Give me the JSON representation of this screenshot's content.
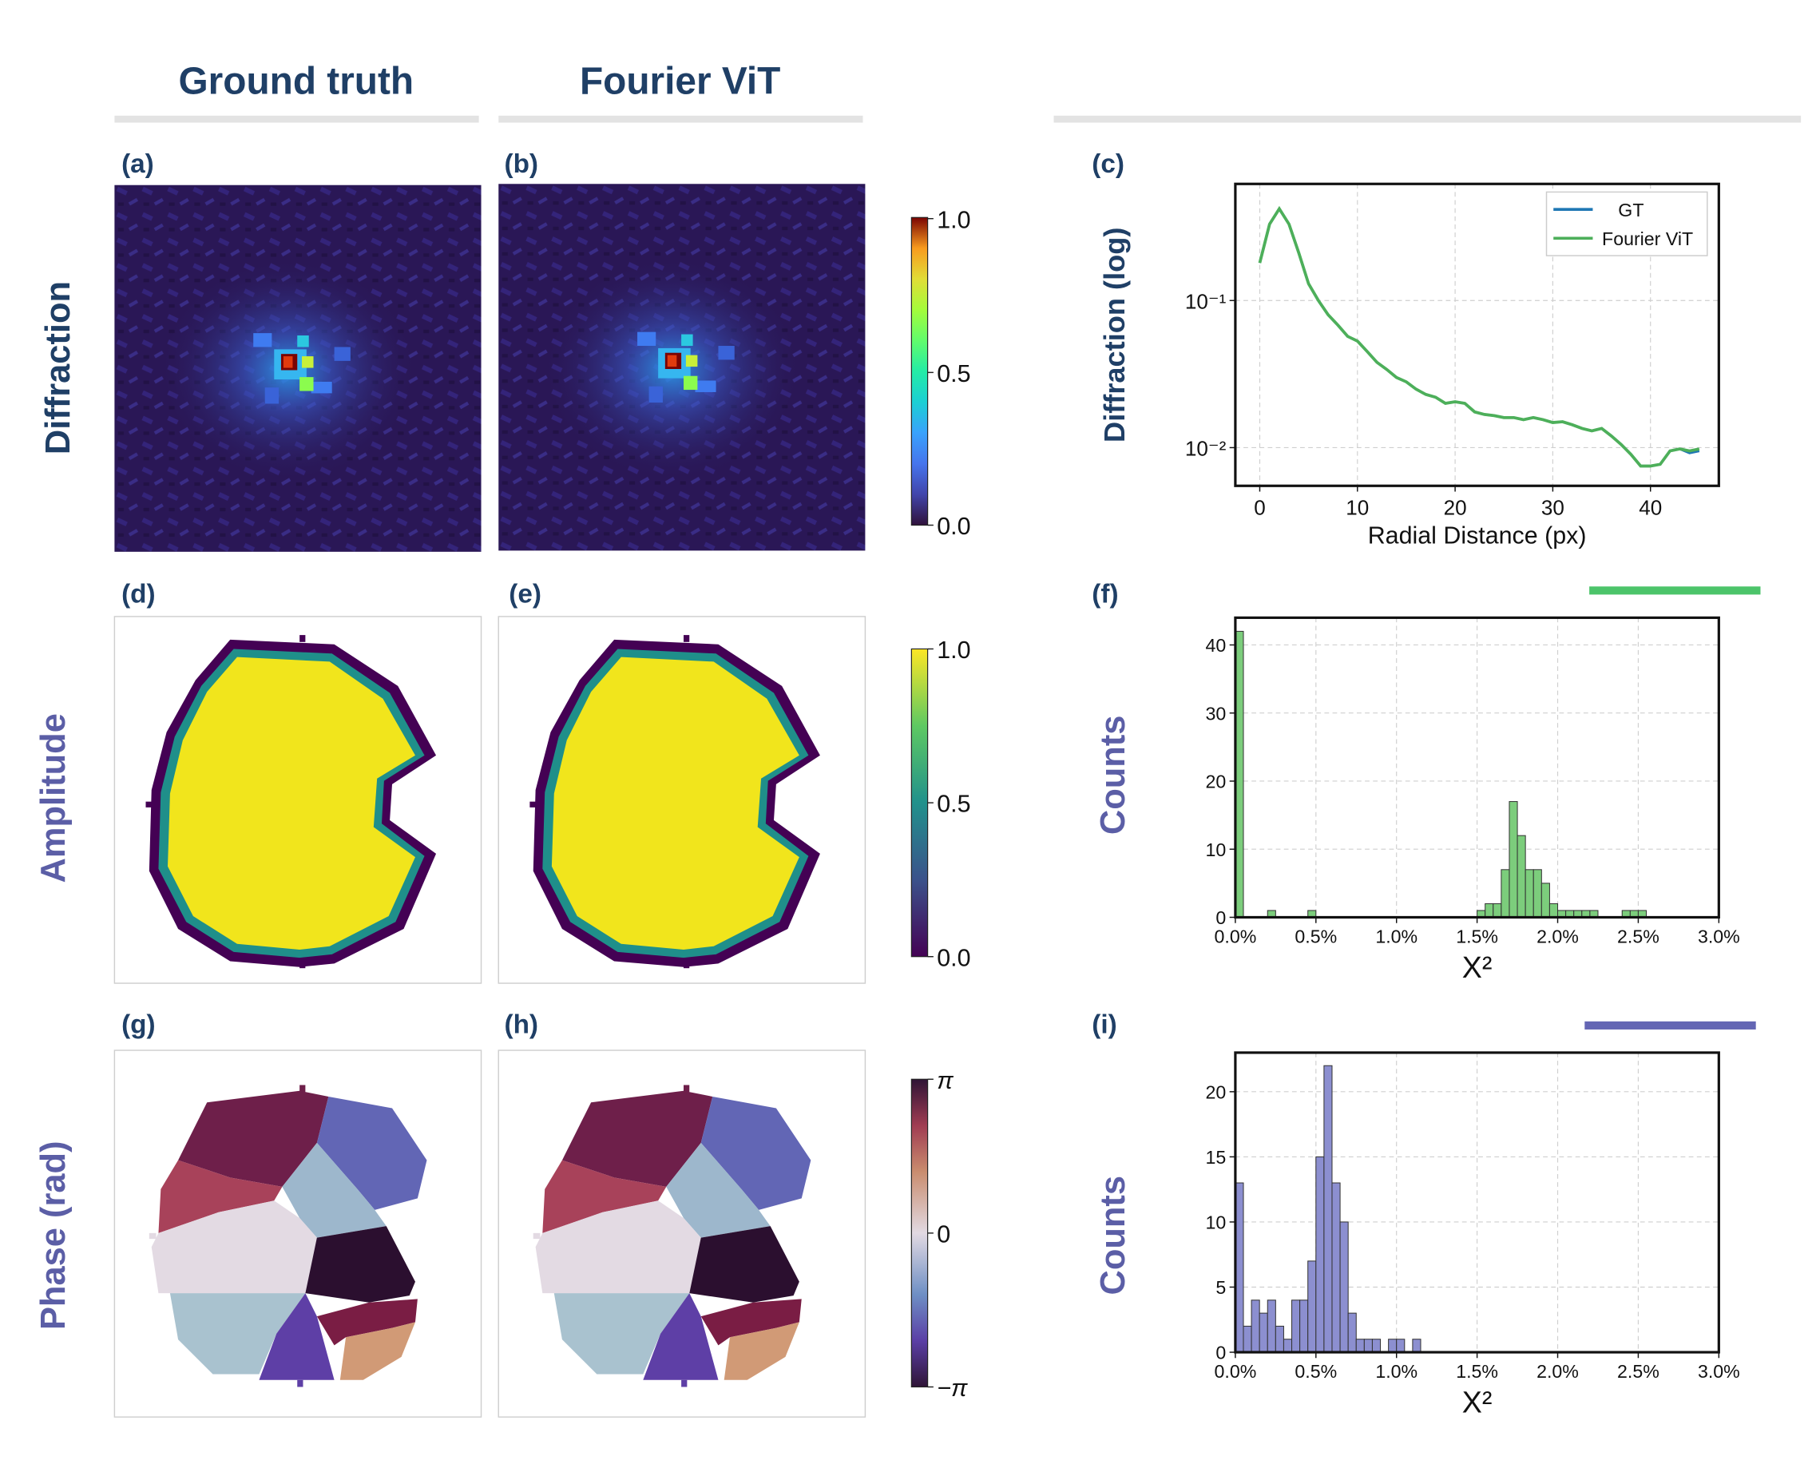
{
  "columns": {
    "ground_truth": "Ground truth",
    "fourier_vit": "Fourier ViT"
  },
  "rows": {
    "diffraction": "Diffraction",
    "amplitude": "Amplitude",
    "phase": "Phase (rad)"
  },
  "panel_labels": [
    "(a)",
    "(b)",
    "(c)",
    "(d)",
    "(e)",
    "(f)",
    "(g)",
    "(h)",
    "(i)"
  ],
  "colorbars": {
    "diffraction": {
      "colormap": "turbo",
      "ticks": [
        "1.0",
        "0.5",
        "0.0"
      ]
    },
    "amplitude": {
      "colormap": "viridis",
      "ticks": [
        "1.0",
        "0.5",
        "0.0"
      ]
    },
    "phase": {
      "colormap": "twilight",
      "ticks": [
        "π",
        "0",
        "−π"
      ]
    }
  },
  "colors": {
    "heading": "#1f3f66",
    "row_amp_phase": "#5b5ea6",
    "gt_line": "#1f77b4",
    "vit_line": "#4daf5a",
    "hist_f": "#7ccd7c",
    "hist_i": "#8c8fd0",
    "bar_f": "#4cc46a",
    "bar_i": "#6466b4"
  },
  "chart_data": [
    {
      "panel": "c",
      "type": "line",
      "xlabel": "Radial Distance (px)",
      "ylabel": "Diffraction (log)",
      "yscale": "log",
      "xlim": [
        -2.5,
        47
      ],
      "ylim": [
        0.0055,
        0.62
      ],
      "x_ticks": [
        "0",
        "10",
        "20",
        "30",
        "40"
      ],
      "y_ticks": [
        "10⁻¹",
        "10⁻²"
      ],
      "grid": true,
      "legend_position": "top-right",
      "series": [
        {
          "name": "GT",
          "x": [
            0,
            1,
            2,
            3,
            4,
            5,
            6,
            7,
            8,
            9,
            10,
            11,
            12,
            13,
            14,
            15,
            16,
            17,
            18,
            19,
            20,
            21,
            22,
            23,
            24,
            25,
            26,
            27,
            28,
            29,
            30,
            31,
            32,
            33,
            34,
            35,
            36,
            37,
            38,
            39,
            40,
            41,
            42,
            43,
            44,
            45
          ],
          "y": [
            0.18,
            0.33,
            0.42,
            0.33,
            0.21,
            0.13,
            0.1,
            0.08,
            0.068,
            0.057,
            0.053,
            0.045,
            0.038,
            0.034,
            0.03,
            0.028,
            0.025,
            0.023,
            0.022,
            0.02,
            0.0205,
            0.02,
            0.0175,
            0.0168,
            0.0165,
            0.016,
            0.016,
            0.0155,
            0.016,
            0.0155,
            0.0148,
            0.015,
            0.0143,
            0.0135,
            0.013,
            0.0135,
            0.012,
            0.0105,
            0.009,
            0.0075,
            0.0075,
            0.0077,
            0.0095,
            0.0098,
            0.0092,
            0.0095
          ]
        },
        {
          "name": "Fourier ViT",
          "x": [
            0,
            1,
            2,
            3,
            4,
            5,
            6,
            7,
            8,
            9,
            10,
            11,
            12,
            13,
            14,
            15,
            16,
            17,
            18,
            19,
            20,
            21,
            22,
            23,
            24,
            25,
            26,
            27,
            28,
            29,
            30,
            31,
            32,
            33,
            34,
            35,
            36,
            37,
            38,
            39,
            40,
            41,
            42,
            43,
            44,
            45
          ],
          "y": [
            0.18,
            0.33,
            0.42,
            0.33,
            0.21,
            0.13,
            0.1,
            0.08,
            0.068,
            0.057,
            0.053,
            0.045,
            0.038,
            0.034,
            0.03,
            0.028,
            0.025,
            0.023,
            0.022,
            0.02,
            0.0205,
            0.02,
            0.0175,
            0.0168,
            0.0165,
            0.016,
            0.016,
            0.0155,
            0.016,
            0.0155,
            0.0148,
            0.015,
            0.0143,
            0.0135,
            0.013,
            0.0135,
            0.012,
            0.0105,
            0.009,
            0.0075,
            0.0075,
            0.0077,
            0.0095,
            0.0098,
            0.0095,
            0.0098
          ]
        }
      ]
    },
    {
      "panel": "f",
      "type": "bar",
      "xlabel": "X²",
      "ylabel": "Counts",
      "xlim": [
        0.0,
        3.0
      ],
      "ylim": [
        0,
        44
      ],
      "bin_width": 0.05,
      "x_ticks": [
        "0.0%",
        "0.5%",
        "1.0%",
        "1.5%",
        "2.0%",
        "2.5%",
        "3.0%"
      ],
      "y_ticks": [
        "0",
        "10",
        "20",
        "30",
        "40"
      ],
      "grid": true,
      "bins": [
        0.0,
        0.2,
        0.45,
        1.5,
        1.55,
        1.6,
        1.65,
        1.7,
        1.75,
        1.8,
        1.85,
        1.9,
        1.95,
        2.0,
        2.05,
        2.1,
        2.15,
        2.2,
        2.4,
        2.45,
        2.5
      ],
      "values": [
        42,
        1,
        1,
        1,
        2,
        2,
        7,
        17,
        12,
        7,
        7,
        5,
        2,
        1,
        1,
        1,
        1,
        1,
        1,
        1,
        1
      ]
    },
    {
      "panel": "i",
      "type": "bar",
      "xlabel": "X²",
      "ylabel": "Counts",
      "xlim": [
        0.0,
        3.0
      ],
      "ylim": [
        0,
        23
      ],
      "bin_width": 0.05,
      "x_ticks": [
        "0.0%",
        "0.5%",
        "1.0%",
        "1.5%",
        "2.0%",
        "2.5%",
        "3.0%"
      ],
      "y_ticks": [
        "0",
        "5",
        "10",
        "15",
        "20"
      ],
      "grid": true,
      "bins": [
        0.0,
        0.05,
        0.1,
        0.15,
        0.2,
        0.25,
        0.3,
        0.35,
        0.4,
        0.45,
        0.5,
        0.55,
        0.6,
        0.65,
        0.7,
        0.75,
        0.8,
        0.85,
        0.9,
        0.95,
        1.0,
        1.05,
        1.1
      ],
      "values": [
        13,
        2,
        4,
        3,
        4,
        2,
        1,
        4,
        4,
        7,
        15,
        22,
        13,
        10,
        3,
        1,
        1,
        1,
        0,
        1,
        1,
        0,
        1
      ]
    }
  ]
}
